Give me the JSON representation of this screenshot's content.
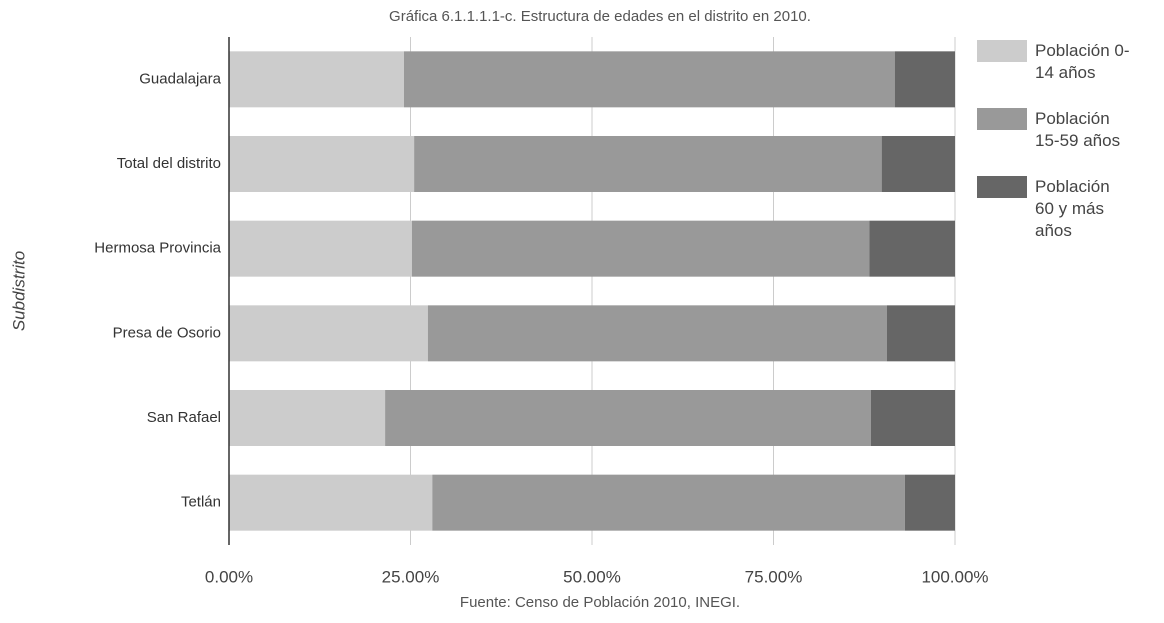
{
  "chart_data": {
    "type": "stacked_barh",
    "title": "Gráfica 6.1.1.1.1-c. Estructura de edades en el distrito en 2010.",
    "source": "Fuente: Censo de Población 2010, INEGI.",
    "y_label": "Subdistrito",
    "categories": [
      "Guadalajara",
      "Total del distrito",
      "Hermosa Provincia",
      "Presa de Osorio",
      "San Rafael",
      "Tetlán"
    ],
    "series": [
      {
        "name": "Población 0-14 años",
        "color": "#cccccc",
        "values": [
          24.1,
          25.5,
          25.2,
          27.4,
          21.5,
          28.0
        ]
      },
      {
        "name": "Población 15-59 años",
        "color": "#999999",
        "values": [
          67.6,
          64.4,
          63.0,
          63.2,
          66.9,
          65.1
        ]
      },
      {
        "name": "Población 60 y más años",
        "color": "#666666",
        "values": [
          8.3,
          10.1,
          11.8,
          9.4,
          11.6,
          6.9
        ]
      }
    ],
    "xlim": [
      0,
      100
    ],
    "xticks": [
      {
        "value": 0,
        "label": "0.00%"
      },
      {
        "value": 25,
        "label": "25.00%"
      },
      {
        "value": 50,
        "label": "50.00%"
      },
      {
        "value": 75,
        "label": "75.00%"
      },
      {
        "value": 100,
        "label": "100.00%"
      }
    ],
    "grid": true,
    "legend": "right"
  }
}
